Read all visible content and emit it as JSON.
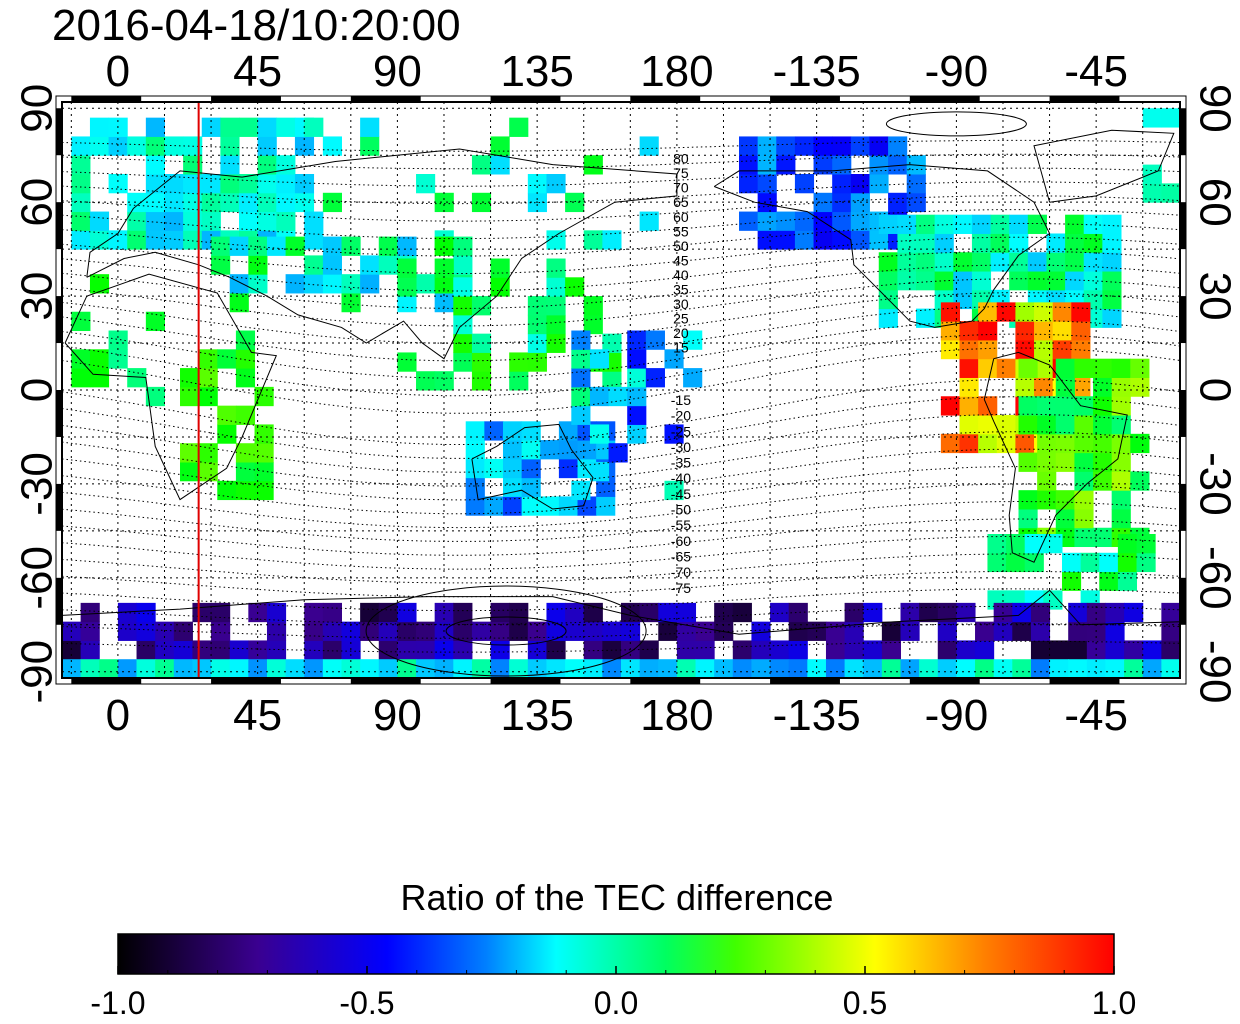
{
  "timestamp": "2016-04-18/10:20:00",
  "map": {
    "x_tick_labels": [
      "0",
      "45",
      "90",
      "135",
      "180",
      "-135",
      "-90",
      "-45"
    ],
    "y_tick_labels": [
      "90",
      "60",
      "30",
      "0",
      "-30",
      "-60",
      "-90"
    ],
    "lon_ticks_deg": [
      0,
      45,
      90,
      135,
      180,
      225,
      270,
      315
    ],
    "lat_ticks_deg": [
      90,
      60,
      30,
      0,
      -30,
      -60,
      -90
    ],
    "lon_range_deg": [
      -18,
      342
    ],
    "lat_range_deg": [
      -92,
      92
    ],
    "grid": "dotted, every 15 degrees",
    "marker_line_lon_deg": 26,
    "marker_line_color": "#e00000",
    "contour_labels_north": [
      "80",
      "75",
      "70",
      "65",
      "60",
      "55",
      "50",
      "45",
      "40",
      "35",
      "30",
      "25",
      "20",
      "15"
    ],
    "contour_labels_south": [
      "-15",
      "-20",
      "-25",
      "-30",
      "-35",
      "-40",
      "-45",
      "-50",
      "-55",
      "-60",
      "-65",
      "-70",
      "-75"
    ]
  },
  "colorbar": {
    "title": "Ratio of the TEC difference",
    "min": -1.0,
    "max": 1.0,
    "tick_labels": [
      "-1.0",
      "-0.5",
      "0.0",
      "0.5",
      "1.0"
    ],
    "colors": [
      "#000000",
      "#3a0090",
      "#0000ff",
      "#00ffff",
      "#00ff00",
      "#ffff00",
      "#ff8000",
      "#ff0000"
    ]
  }
}
